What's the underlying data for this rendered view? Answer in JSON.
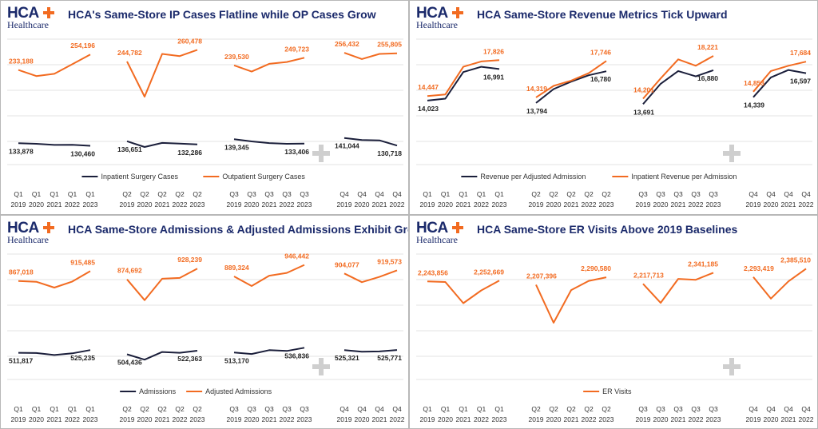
{
  "logo": {
    "brand": "HCA",
    "sub": "Healthcare"
  },
  "chart_data": [
    {
      "type": "line",
      "title": "HCA's Same-Store IP Cases Flatline while OP Cases Grow",
      "groups": [
        {
          "quarter": "Q1",
          "periods": [
            "2019",
            "2020",
            "2021",
            "2022",
            "2023"
          ]
        },
        {
          "quarter": "Q2",
          "periods": [
            "2019",
            "2020",
            "2021",
            "2022",
            "2023"
          ]
        },
        {
          "quarter": "Q3",
          "periods": [
            "2019",
            "2020",
            "2021",
            "2022",
            "2023"
          ]
        },
        {
          "quarter": "Q4",
          "periods": [
            "2019",
            "2020",
            "2021",
            "2022"
          ]
        }
      ],
      "series": [
        {
          "name": "Inpatient Surgery Cases",
          "color": "#1b1f3b",
          "values": [
            [
              133878,
              133100,
              131600,
              131800,
              130460
            ],
            [
              136651,
              128800,
              134300,
              133400,
              132286
            ],
            [
              139345,
              136400,
              134100,
              133200,
              133406
            ],
            [
              141044,
              138200,
              137800,
              130718
            ]
          ],
          "labels": [
            [
              "133,878",
              "130,460"
            ],
            [
              "136,651",
              "132,286"
            ],
            [
              "139,345",
              "133,406"
            ],
            [
              "141,044",
              "130,718"
            ]
          ]
        },
        {
          "name": "Outpatient Surgery Cases",
          "color": "#f26b21",
          "values": [
            [
              233188,
              225000,
              228000,
              241000,
              254196
            ],
            [
              244782,
              197000,
              255000,
              252000,
              260478
            ],
            [
              239530,
              231000,
              241500,
              244000,
              249723
            ],
            [
              256432,
              248000,
              255000,
              255805
            ]
          ],
          "labels": [
            [
              "233,188",
              "254,196"
            ],
            [
              "244,782",
              "260,478"
            ],
            [
              "239,530",
              "249,723"
            ],
            [
              "256,432",
              "255,805"
            ]
          ]
        }
      ],
      "ylim": [
        105000,
        275000
      ]
    },
    {
      "type": "line",
      "title": "HCA Same-Store Revenue Metrics Tick Upward",
      "groups": [
        {
          "quarter": "Q1",
          "periods": [
            "2019",
            "2020",
            "2021",
            "2022",
            "2023"
          ]
        },
        {
          "quarter": "Q2",
          "periods": [
            "2019",
            "2020",
            "2021",
            "2022",
            "2023"
          ]
        },
        {
          "quarter": "Q3",
          "periods": [
            "2019",
            "2020",
            "2021",
            "2022",
            "2023"
          ]
        },
        {
          "quarter": "Q4",
          "periods": [
            "2019",
            "2020",
            "2021",
            "2022"
          ]
        }
      ],
      "series": [
        {
          "name": "Revenue per Adjusted Admission",
          "color": "#1b1f3b",
          "values": [
            [
              14023,
              14200,
              16700,
              17200,
              16991
            ],
            [
              13794,
              15100,
              15800,
              16400,
              16780
            ],
            [
              13691,
              15600,
              16800,
              16300,
              16880
            ],
            [
              14339,
              16200,
              16900,
              16597
            ]
          ],
          "labels": [
            [
              "14,023",
              "16,991"
            ],
            [
              "13,794",
              "16,780"
            ],
            [
              "13,691",
              "16,880"
            ],
            [
              "14,339",
              "16,597"
            ]
          ]
        },
        {
          "name": "Inpatient Revenue per Admission",
          "color": "#f26b21",
          "values": [
            [
              14447,
              14600,
              17200,
              17700,
              17826
            ],
            [
              14319,
              15400,
              15900,
              16600,
              17746
            ],
            [
              14201,
              16100,
              17900,
              17300,
              18221
            ],
            [
              14853,
              16800,
              17300,
              17684
            ]
          ],
          "labels": [
            [
              "14,447",
              "17,826"
            ],
            [
              "14,319",
              "17,746"
            ],
            [
              "14,201",
              "18,221"
            ],
            [
              "14,853",
              "17,684"
            ]
          ]
        }
      ],
      "ylim": [
        8000,
        19800
      ]
    },
    {
      "type": "line",
      "title": "HCA Same-Store Admissions & Adjusted Admissions Exhibit Growth",
      "groups": [
        {
          "quarter": "Q1",
          "periods": [
            "2019",
            "2020",
            "2021",
            "2022",
            "2023"
          ]
        },
        {
          "quarter": "Q2",
          "periods": [
            "2019",
            "2020",
            "2021",
            "2022",
            "2023"
          ]
        },
        {
          "quarter": "Q3",
          "periods": [
            "2019",
            "2020",
            "2021",
            "2022",
            "2023"
          ]
        },
        {
          "quarter": "Q4",
          "periods": [
            "2019",
            "2020",
            "2021",
            "2022"
          ]
        }
      ],
      "series": [
        {
          "name": "Admissions",
          "color": "#1b1f3b",
          "values": [
            [
              511817,
              510600,
              501000,
              509000,
              525235
            ],
            [
              504436,
              478000,
              516000,
              512000,
              522363
            ],
            [
              513170,
              506000,
              525000,
              521000,
              536836
            ],
            [
              525321,
              517000,
              518500,
              525771
            ]
          ],
          "labels": [
            [
              "511,817",
              "525,235"
            ],
            [
              "504,436",
              "522,363"
            ],
            [
              "513,170",
              "536,836"
            ],
            [
              "525,321",
              "525,771"
            ]
          ]
        },
        {
          "name": "Adjusted Admissions",
          "color": "#f26b21",
          "values": [
            [
              867018,
              863000,
              834000,
              864000,
              915485
            ],
            [
              874692,
              772000,
              878000,
              882000,
              928239
            ],
            [
              889324,
              842000,
              893000,
              907000,
              946442
            ],
            [
              904077,
              861000,
              887000,
              919573
            ]
          ],
          "labels": [
            [
              "867,018",
              "915,485"
            ],
            [
              "874,692",
              "928,239"
            ],
            [
              "889,324",
              "946,442"
            ],
            [
              "904,077",
              "919,573"
            ]
          ]
        }
      ],
      "ylim": [
        380000,
        1000000
      ]
    },
    {
      "type": "line",
      "title": "HCA Same-Store ER Visits Above 2019 Baselines",
      "groups": [
        {
          "quarter": "Q1",
          "periods": [
            "2019",
            "2020",
            "2021",
            "2022",
            "2023"
          ]
        },
        {
          "quarter": "Q2",
          "periods": [
            "2019",
            "2020",
            "2021",
            "2022",
            "2023"
          ]
        },
        {
          "quarter": "Q3",
          "periods": [
            "2019",
            "2020",
            "2021",
            "2022",
            "2023"
          ]
        },
        {
          "quarter": "Q4",
          "periods": [
            "2019",
            "2020",
            "2021",
            "2022"
          ]
        }
      ],
      "series": [
        {
          "name": "ER Visits",
          "color": "#f26b21",
          "values": [
            [
              2243856,
              2238000,
              2002000,
              2144000,
              2252669
            ],
            [
              2207396,
              1783000,
              2148000,
              2250000,
              2290580
            ],
            [
              2217713,
              2005000,
              2273000,
              2263000,
              2341185
            ],
            [
              2293419,
              2052000,
              2245000,
              2385510
            ]
          ],
          "labels": [
            [
              "2,243,856",
              "2,252,669"
            ],
            [
              "2,207,396",
              "2,290,580"
            ],
            [
              "2,217,713",
              "2,341,185"
            ],
            [
              "2,293,419",
              "2,385,510"
            ]
          ]
        }
      ],
      "ylim": [
        1150000,
        2550000
      ]
    }
  ]
}
